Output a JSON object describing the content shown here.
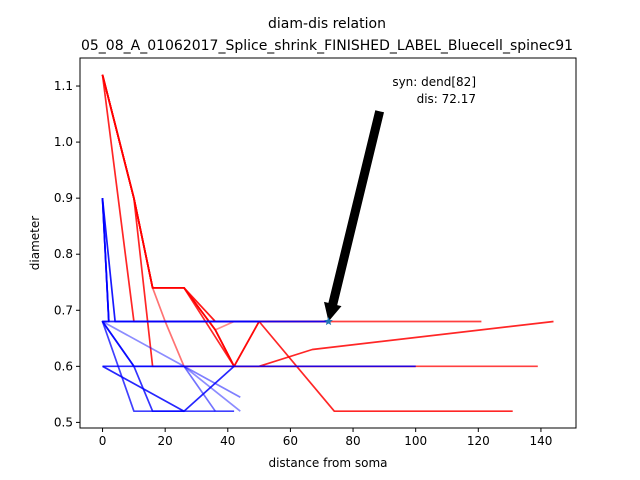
{
  "chart_data": {
    "type": "line",
    "title": "diam-dis relation",
    "subtitle": "05_08_A_01062017_Splice_shrink_FINISHED_LABEL_Bluecell_spinec91",
    "xlabel": "distance from soma",
    "ylabel": "diameter",
    "xlim": [
      -7.2,
      151.2
    ],
    "ylim": [
      0.49,
      1.15
    ],
    "xticks": [
      0,
      20,
      40,
      60,
      80,
      100,
      120,
      140
    ],
    "yticks": [
      0.5,
      0.6,
      0.7,
      0.8,
      0.9,
      1.0,
      1.1
    ],
    "xtick_labels": [
      "0",
      "20",
      "40",
      "60",
      "80",
      "100",
      "120",
      "140"
    ],
    "ytick_labels": [
      "0.5",
      "0.6",
      "0.7",
      "0.8",
      "0.9",
      "1.0",
      "1.1"
    ],
    "grid": false,
    "series": [
      {
        "color": "#ff0000",
        "opacity": 0.75,
        "x": [
          0,
          10,
          16,
          26,
          36,
          42,
          50,
          65,
          72,
          100,
          121
        ],
        "y": [
          1.12,
          0.9,
          0.74,
          0.74,
          0.665,
          0.6,
          0.68,
          0.68,
          0.68,
          0.68,
          0.68
        ]
      },
      {
        "color": "#ff0000",
        "opacity": 0.85,
        "x": [
          0,
          10,
          16,
          26,
          42,
          50,
          67,
          144
        ],
        "y": [
          1.12,
          0.9,
          0.74,
          0.74,
          0.6,
          0.6,
          0.63,
          0.68
        ]
      },
      {
        "color": "#ff0000",
        "opacity": 0.85,
        "x": [
          0,
          10,
          16,
          26,
          36,
          42,
          50,
          74,
          131
        ],
        "y": [
          1.12,
          0.9,
          0.74,
          0.74,
          0.665,
          0.6,
          0.68,
          0.52,
          0.52
        ]
      },
      {
        "color": "#ff0000",
        "opacity": 0.75,
        "x": [
          0,
          10,
          16,
          26,
          36,
          42,
          50,
          121,
          139
        ],
        "y": [
          1.12,
          0.9,
          0.74,
          0.74,
          0.665,
          0.6,
          0.6,
          0.6,
          0.6
        ]
      },
      {
        "color": "#ff0000",
        "opacity": 0.55,
        "x": [
          0,
          10,
          16,
          20,
          26
        ],
        "y": [
          1.12,
          0.9,
          0.74,
          0.68,
          0.6
        ]
      },
      {
        "color": "#ff0000",
        "opacity": 0.9,
        "x": [
          0,
          10,
          16,
          26,
          36,
          72
        ],
        "y": [
          1.12,
          0.9,
          0.74,
          0.74,
          0.68,
          0.68
        ]
      },
      {
        "color": "#ff0000",
        "opacity": 0.85,
        "x": [
          0,
          10,
          72
        ],
        "y": [
          1.12,
          0.68,
          0.68
        ]
      },
      {
        "color": "#ff0000",
        "opacity": 0.85,
        "x": [
          0,
          10,
          16,
          100
        ],
        "y": [
          1.12,
          0.9,
          0.6,
          0.6
        ]
      },
      {
        "color": "#ff0000",
        "opacity": 0.45,
        "x": [
          36,
          42,
          49
        ],
        "y": [
          0.665,
          0.68,
          0.68
        ]
      },
      {
        "color": "#0000ff",
        "opacity": 0.9,
        "x": [
          0,
          4,
          72
        ],
        "y": [
          0.9,
          0.68,
          0.68
        ]
      },
      {
        "color": "#0000ff",
        "opacity": 0.85,
        "x": [
          0,
          2,
          42,
          50
        ],
        "y": [
          0.9,
          0.68,
          0.68,
          0.68
        ]
      },
      {
        "color": "#0000ff",
        "opacity": 0.75,
        "x": [
          0,
          2,
          0,
          10,
          26,
          36,
          42
        ],
        "y": [
          0.9,
          0.68,
          0.68,
          0.52,
          0.52,
          0.52,
          0.52
        ]
      },
      {
        "color": "#0000ff",
        "opacity": 0.8,
        "x": [
          0,
          2,
          0,
          10,
          16,
          26
        ],
        "y": [
          0.9,
          0.68,
          0.68,
          0.6,
          0.52,
          0.52
        ]
      },
      {
        "color": "#0000ff",
        "opacity": 0.85,
        "x": [
          0,
          26,
          42
        ],
        "y": [
          0.6,
          0.52,
          0.6
        ]
      },
      {
        "color": "#0000ff",
        "opacity": 0.45,
        "x": [
          0,
          26,
          44
        ],
        "y": [
          0.68,
          0.6,
          0.52
        ]
      },
      {
        "color": "#0000ff",
        "opacity": 0.5,
        "x": [
          0,
          10,
          26,
          44
        ],
        "y": [
          0.68,
          0.6,
          0.6,
          0.545
        ]
      },
      {
        "color": "#0000ff",
        "opacity": 0.55,
        "x": [
          0,
          10,
          26,
          36
        ],
        "y": [
          0.68,
          0.6,
          0.6,
          0.52
        ]
      },
      {
        "color": "#0000ff",
        "opacity": 0.85,
        "x": [
          0,
          100
        ],
        "y": [
          0.6,
          0.6
        ]
      }
    ],
    "marker": {
      "x": 72.17,
      "y": 0.68,
      "color": "#1f77b4"
    },
    "annotation": {
      "line1": "syn: dend[82]",
      "line2": "dis: 72.17",
      "text_anchor": [
        120,
        1.11
      ],
      "arrow_from": [
        88.5,
        1.055
      ],
      "arrow_to": [
        72.17,
        0.68
      ]
    }
  }
}
